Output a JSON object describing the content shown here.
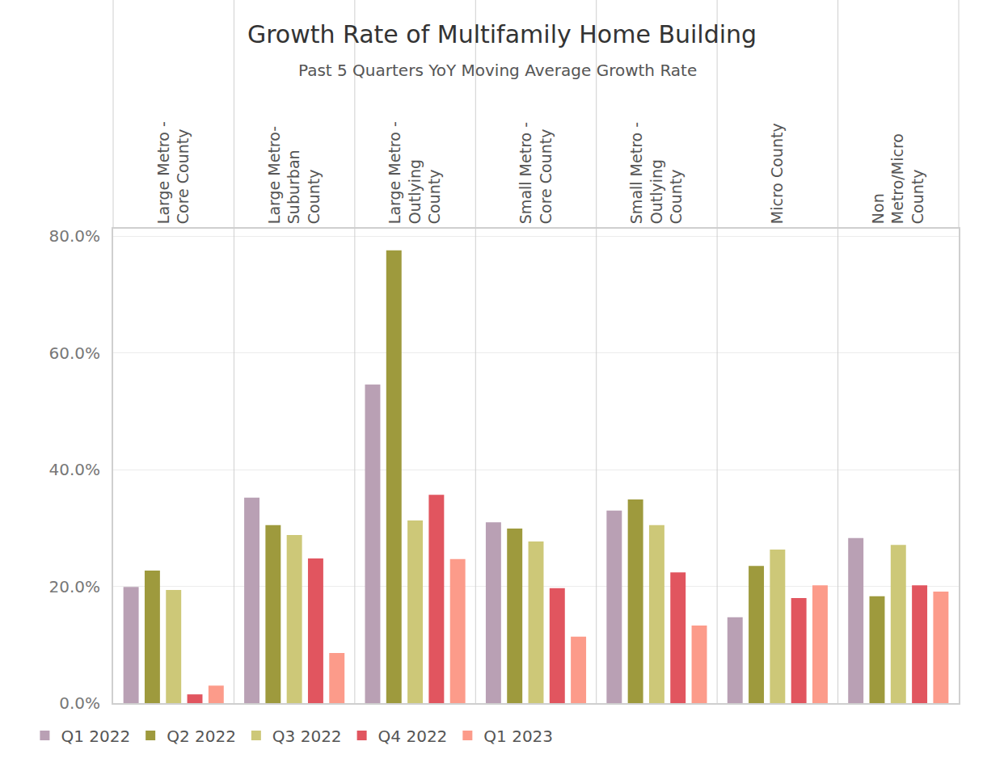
{
  "chart_data": {
    "type": "bar",
    "title": "Growth Rate of Multifamily Home Building",
    "subtitle": "Past 5 Quarters YoY Moving Average Growth Rate",
    "categories": [
      "Large Metro - Core County",
      "Large Metro- Suburban County",
      "Large Metro - Outlying County",
      "Small Metro - Core County",
      "Small Metro - Outlying County",
      "Micro County",
      "Non Metro/Micro County"
    ],
    "series": [
      {
        "name": "Q1 2022",
        "color": "#b9a0b4",
        "values": [
          19.9,
          35.2,
          54.6,
          31.0,
          33.0,
          14.7,
          28.3
        ]
      },
      {
        "name": "Q2 2022",
        "color": "#9e9a3d",
        "values": [
          22.7,
          30.5,
          77.6,
          29.9,
          34.9,
          23.5,
          18.3
        ]
      },
      {
        "name": "Q3 2022",
        "color": "#cdc878",
        "values": [
          19.4,
          28.8,
          31.3,
          27.7,
          30.5,
          26.3,
          27.1
        ]
      },
      {
        "name": "Q4 2022",
        "color": "#e1555f",
        "values": [
          1.5,
          24.8,
          35.7,
          19.7,
          22.4,
          18.0,
          20.2
        ]
      },
      {
        "name": "Q1 2023",
        "color": "#fc9b8a",
        "values": [
          3.0,
          8.6,
          24.7,
          11.4,
          13.3,
          20.2,
          19.1
        ]
      }
    ],
    "ylim": [
      0,
      81.3
    ],
    "yticks": [
      {
        "value": 0,
        "label": "0.0%"
      },
      {
        "value": 20,
        "label": "20.0%"
      },
      {
        "value": 40,
        "label": "40.0%"
      },
      {
        "value": 60,
        "label": "60.0%"
      },
      {
        "value": 80,
        "label": "80.0%"
      }
    ],
    "grid": true,
    "legend": "bottom"
  }
}
